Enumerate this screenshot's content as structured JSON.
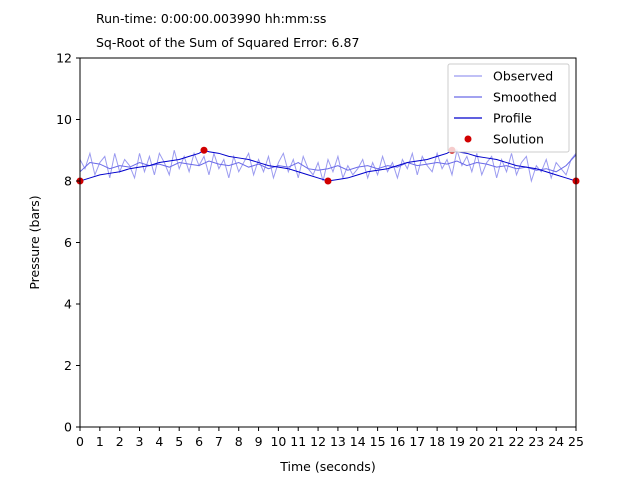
{
  "header": {
    "runtime": "Run-time: 0:00:00.003990 hh:mm:ss",
    "error": "Sq-Root of the Sum of Squared Error: 6.87"
  },
  "chart_data": {
    "type": "line",
    "title": "",
    "xlabel": "Time (seconds)",
    "ylabel": "Pressure (bars)",
    "xlim": [
      0,
      25
    ],
    "ylim": [
      0,
      12
    ],
    "xticks": [
      0,
      1,
      2,
      3,
      4,
      5,
      6,
      7,
      8,
      9,
      10,
      11,
      12,
      13,
      14,
      15,
      16,
      17,
      18,
      19,
      20,
      21,
      22,
      23,
      24,
      25
    ],
    "yticks": [
      0,
      2,
      4,
      6,
      8,
      10,
      12
    ],
    "grid": false,
    "legend_position": "top-right",
    "series": [
      {
        "name": "Observed",
        "color": "#9b9bf0",
        "style": "line",
        "x": [
          0,
          0.25,
          0.5,
          0.75,
          1,
          1.25,
          1.5,
          1.75,
          2,
          2.25,
          2.5,
          2.75,
          3,
          3.25,
          3.5,
          3.75,
          4,
          4.25,
          4.5,
          4.75,
          5,
          5.25,
          5.5,
          5.75,
          6,
          6.25,
          6.5,
          6.75,
          7,
          7.25,
          7.5,
          7.75,
          8,
          8.25,
          8.5,
          8.75,
          9,
          9.25,
          9.5,
          9.75,
          10,
          10.25,
          10.5,
          10.75,
          11,
          11.25,
          11.5,
          11.75,
          12,
          12.25,
          12.5,
          12.75,
          13,
          13.25,
          13.5,
          13.75,
          14,
          14.25,
          14.5,
          14.75,
          15,
          15.25,
          15.5,
          15.75,
          16,
          16.25,
          16.5,
          16.75,
          17,
          17.25,
          17.5,
          17.75,
          18,
          18.25,
          18.5,
          18.75,
          19,
          19.25,
          19.5,
          19.75,
          20,
          20.25,
          20.5,
          20.75,
          21,
          21.25,
          21.5,
          21.75,
          22,
          22.25,
          22.5,
          22.75,
          23,
          23.25,
          23.5,
          23.75,
          24,
          24.25,
          24.5,
          24.75,
          25
        ],
        "y": [
          8.7,
          8.4,
          8.9,
          8.2,
          8.6,
          8.8,
          8.1,
          8.9,
          8.3,
          8.7,
          8.5,
          8.1,
          8.9,
          8.3,
          8.8,
          8.2,
          8.9,
          8.6,
          8.2,
          9.0,
          8.4,
          8.8,
          8.3,
          8.9,
          8.5,
          8.8,
          8.2,
          8.9,
          8.4,
          8.7,
          8.1,
          8.8,
          8.3,
          8.6,
          8.9,
          8.2,
          8.7,
          8.3,
          8.8,
          8.1,
          8.6,
          8.9,
          8.3,
          8.7,
          8.1,
          8.8,
          8.4,
          8.2,
          8.6,
          8.0,
          8.7,
          8.3,
          8.8,
          8.1,
          8.5,
          8.2,
          8.4,
          8.7,
          8.1,
          8.6,
          8.2,
          8.8,
          8.3,
          8.6,
          8.1,
          8.7,
          8.4,
          8.9,
          8.2,
          8.8,
          8.5,
          8.3,
          8.9,
          8.4,
          8.7,
          8.2,
          9.0,
          8.5,
          8.8,
          8.3,
          8.9,
          8.2,
          8.6,
          8.8,
          8.1,
          8.7,
          8.3,
          8.9,
          8.2,
          8.6,
          8.8,
          8.0,
          8.5,
          8.3,
          8.7,
          8.1,
          8.6,
          8.4,
          8.2,
          8.7,
          8.9
        ]
      },
      {
        "name": "Smoothed",
        "color": "#6a6ae8",
        "style": "line",
        "x": [
          0,
          0.5,
          1,
          1.5,
          2,
          2.5,
          3,
          3.5,
          4,
          4.5,
          5,
          5.5,
          6,
          6.5,
          7,
          7.5,
          8,
          8.5,
          9,
          9.5,
          10,
          10.5,
          11,
          11.5,
          12,
          12.5,
          13,
          13.5,
          14,
          14.5,
          15,
          15.5,
          16,
          16.5,
          17,
          17.5,
          18,
          18.5,
          19,
          19.5,
          20,
          20.5,
          21,
          21.5,
          22,
          22.5,
          23,
          23.5,
          24,
          24.5,
          25
        ],
        "y": [
          8.3,
          8.6,
          8.55,
          8.4,
          8.5,
          8.45,
          8.6,
          8.5,
          8.55,
          8.45,
          8.6,
          8.55,
          8.5,
          8.65,
          8.55,
          8.5,
          8.6,
          8.45,
          8.55,
          8.4,
          8.5,
          8.45,
          8.6,
          8.4,
          8.35,
          8.4,
          8.5,
          8.35,
          8.45,
          8.5,
          8.4,
          8.5,
          8.45,
          8.6,
          8.5,
          8.55,
          8.6,
          8.55,
          8.65,
          8.5,
          8.6,
          8.55,
          8.45,
          8.5,
          8.4,
          8.45,
          8.35,
          8.4,
          8.3,
          8.5,
          8.85
        ]
      },
      {
        "name": "Profile",
        "color": "#0000cc",
        "style": "line",
        "x": [
          0,
          0.5,
          1,
          1.5,
          2,
          2.5,
          3,
          3.5,
          4,
          4.5,
          5,
          5.5,
          6,
          6.25,
          6.5,
          7,
          7.5,
          8,
          8.5,
          9,
          9.5,
          10,
          10.5,
          11,
          11.5,
          12,
          12.5,
          13,
          13.5,
          14,
          14.5,
          15,
          15.5,
          16,
          16.5,
          17,
          17.5,
          18,
          18.5,
          18.75,
          19,
          19.5,
          20,
          20.5,
          21,
          21.5,
          22,
          22.5,
          23,
          23.5,
          24,
          24.5,
          25
        ],
        "y": [
          8.0,
          8.1,
          8.2,
          8.25,
          8.3,
          8.4,
          8.45,
          8.5,
          8.6,
          8.65,
          8.7,
          8.8,
          8.9,
          9.0,
          8.95,
          8.9,
          8.8,
          8.75,
          8.7,
          8.6,
          8.5,
          8.45,
          8.4,
          8.3,
          8.2,
          8.1,
          8.0,
          8.05,
          8.1,
          8.2,
          8.3,
          8.35,
          8.4,
          8.5,
          8.6,
          8.65,
          8.7,
          8.8,
          8.9,
          9.0,
          8.95,
          8.9,
          8.8,
          8.75,
          8.7,
          8.6,
          8.5,
          8.45,
          8.4,
          8.3,
          8.2,
          8.1,
          8.0
        ]
      },
      {
        "name": "Solution",
        "color": "#d10000",
        "style": "scatter",
        "x": [
          0,
          6.25,
          12.5,
          18.75,
          25
        ],
        "y": [
          8.0,
          9.0,
          8.0,
          9.0,
          8.0
        ]
      }
    ]
  }
}
